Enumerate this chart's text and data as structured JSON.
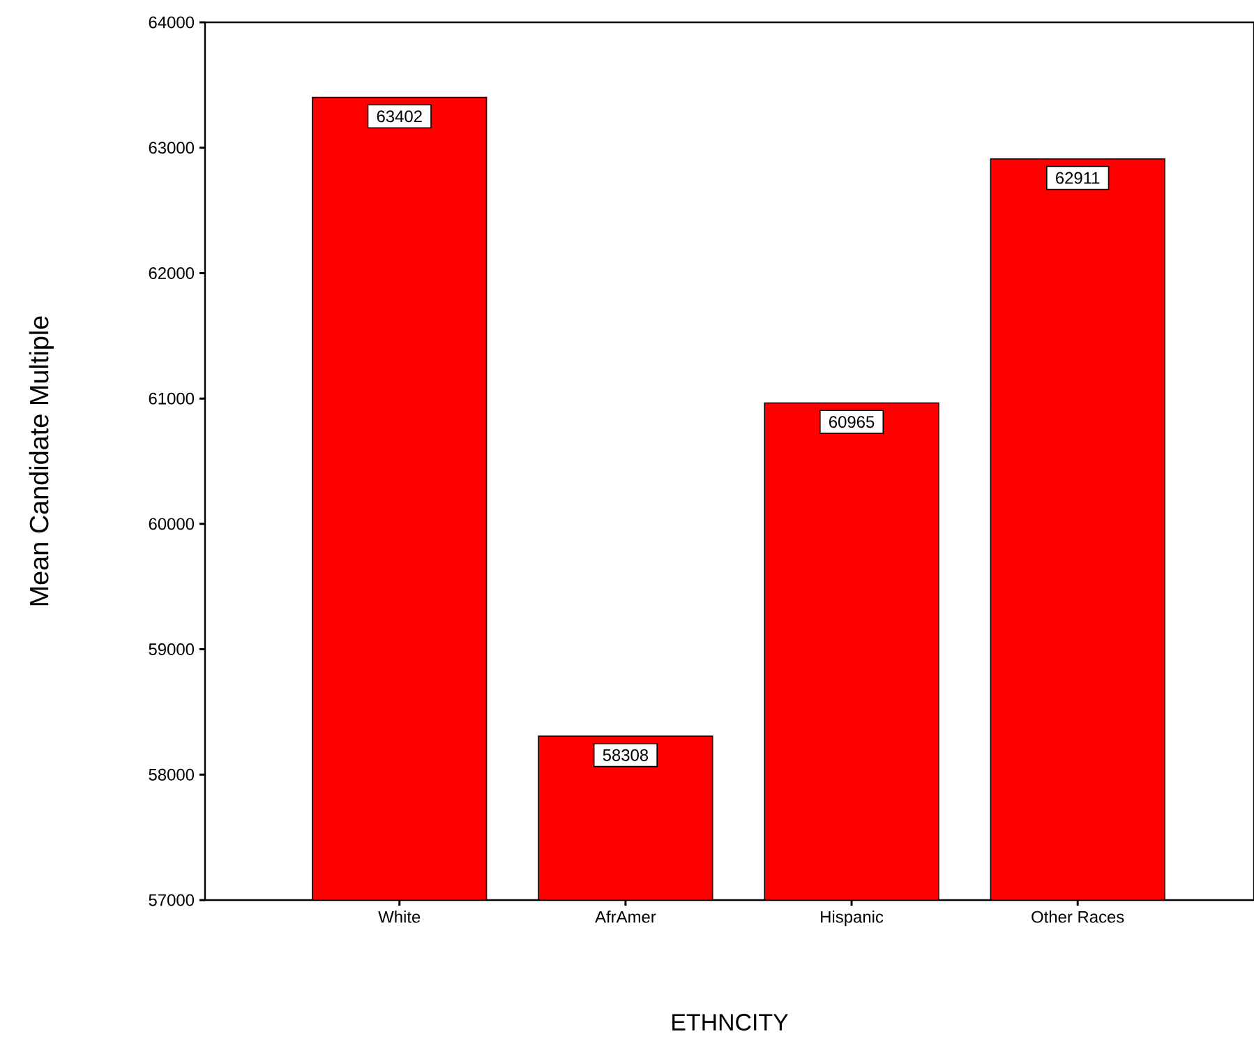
{
  "chart_data": {
    "type": "bar",
    "xlabel": "ETHNCITY",
    "ylabel": "Mean Candidate Multiple",
    "categories": [
      "White",
      "AfrAmer",
      "Hispanic",
      "Other Races"
    ],
    "values": [
      63402,
      58308,
      60965,
      62911
    ],
    "color": "#ff0000",
    "ylim": [
      57000,
      64000
    ],
    "yticks": [
      57000,
      58000,
      59000,
      60000,
      61000,
      62000,
      63000,
      64000
    ],
    "data_labels": true,
    "grid": false
  }
}
